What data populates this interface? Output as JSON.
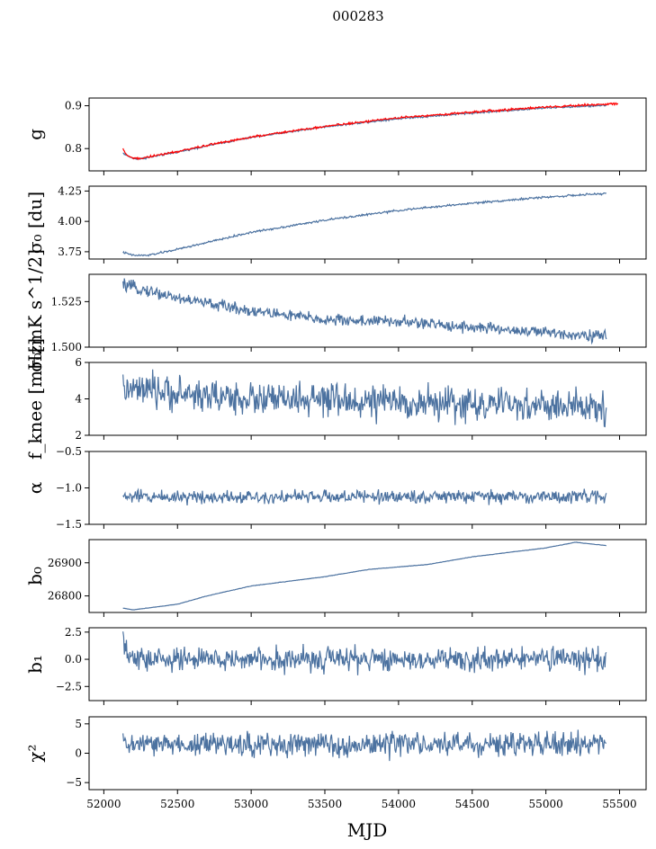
{
  "figure_title": "000283",
  "chart_data": {
    "type": "line",
    "xlabel": "MJD",
    "xlim": [
      51900,
      55680
    ],
    "xticks": [
      52000,
      52500,
      53000,
      53500,
      54000,
      54500,
      55000,
      55500
    ],
    "xtick_labels": [
      "52000",
      "52500",
      "53000",
      "53500",
      "54000",
      "54500",
      "55000",
      "55500"
    ],
    "x_start": 52130,
    "x_end": 55410,
    "line_color": "#4c72a0",
    "overlay_color": "#ff0000",
    "panels": [
      {
        "ylabel": "g",
        "ylim": [
          0.748,
          0.918
        ],
        "yticks": [
          0.8,
          0.9
        ],
        "ytick_labels": [
          "0.8",
          "0.9"
        ],
        "series": [
          {
            "color": "#4c72a0",
            "noise": 0.001,
            "x": [
              52130,
              52150,
              52200,
              52250,
              52300,
              52500,
              52750,
              53000,
              53500,
              54000,
              54500,
              55000,
              55410
            ],
            "y": [
              0.79,
              0.785,
              0.777,
              0.776,
              0.779,
              0.792,
              0.81,
              0.826,
              0.851,
              0.87,
              0.883,
              0.895,
              0.901
            ]
          },
          {
            "color": "#ff0000",
            "noise": 0.0012,
            "x": [
              52130,
              52150,
              52200,
              52250,
              52300,
              52500,
              52750,
              53000,
              53500,
              54000,
              54500,
              55000,
              55490
            ],
            "y": [
              0.8,
              0.786,
              0.778,
              0.777,
              0.78,
              0.793,
              0.811,
              0.827,
              0.852,
              0.872,
              0.885,
              0.897,
              0.905
            ]
          }
        ]
      },
      {
        "ylabel": "σ₀ [du]",
        "ylim": [
          3.69,
          4.29
        ],
        "yticks": [
          3.75,
          4.0,
          4.25
        ],
        "ytick_labels": [
          "3.75",
          "4.00",
          "4.25"
        ],
        "series": [
          {
            "color": "#4c72a0",
            "noise": 0.004,
            "x": [
              52130,
              52200,
              52300,
              52500,
              53000,
              53500,
              54000,
              54500,
              55000,
              55410
            ],
            "y": [
              3.745,
              3.72,
              3.72,
              3.77,
              3.91,
              4.01,
              4.09,
              4.15,
              4.2,
              4.23
            ]
          }
        ]
      },
      {
        "ylabel": "σ₀[mK s^1/2]",
        "ylim": [
          1.5,
          1.54
        ],
        "yticks": [
          1.5,
          1.525
        ],
        "ytick_labels": [
          "1.500",
          "1.525"
        ],
        "series": [
          {
            "color": "#4c72a0",
            "noise": 0.0016,
            "x": [
              52130,
              52300,
              52500,
              53000,
              53500,
              54000,
              54500,
              55000,
              55410
            ],
            "y": [
              1.534,
              1.531,
              1.527,
              1.52,
              1.515,
              1.514,
              1.511,
              1.508,
              1.506
            ]
          }
        ]
      },
      {
        "ylabel": "f_knee [mHz]",
        "ylim": [
          2,
          6
        ],
        "yticks": [
          2,
          4,
          6
        ],
        "ytick_labels": [
          "2",
          "4",
          "6"
        ],
        "series": [
          {
            "color": "#4c72a0",
            "noise": 0.45,
            "x": [
              52130,
              52500,
              53000,
              53500,
              54000,
              54500,
              55000,
              55410
            ],
            "y": [
              4.5,
              4.3,
              4.0,
              3.9,
              3.8,
              3.7,
              3.6,
              3.5
            ]
          }
        ]
      },
      {
        "ylabel": "α",
        "ylim": [
          -1.5,
          -0.5
        ],
        "yticks": [
          -1.5,
          -1.0,
          -0.5
        ],
        "ytick_labels": [
          "−1.5",
          "−1.0",
          "−0.5"
        ],
        "series": [
          {
            "color": "#4c72a0",
            "noise": 0.045,
            "x": [
              52130,
              55410
            ],
            "y": [
              -1.12,
              -1.12
            ]
          }
        ]
      },
      {
        "ylabel": "b₀",
        "ylim": [
          26750,
          26970
        ],
        "yticks": [
          26800,
          26900
        ],
        "ytick_labels": [
          "26800",
          "26900"
        ],
        "series": [
          {
            "color": "#4c72a0",
            "noise": 0.3,
            "x": [
              52130,
              52200,
              52500,
              52700,
              53000,
              53500,
              53800,
              54200,
              54500,
              55000,
              55200,
              55410
            ],
            "y": [
              26763,
              26758,
              26775,
              26800,
              26830,
              26858,
              26880,
              26895,
              26918,
              26945,
              26962,
              26952
            ]
          }
        ]
      },
      {
        "ylabel": "b₁",
        "ylim": [
          -3.8,
          2.9
        ],
        "yticks": [
          -2.5,
          0.0,
          2.5
        ],
        "ytick_labels": [
          "−2.5",
          "0.0",
          "2.5"
        ],
        "series": [
          {
            "color": "#4c72a0",
            "noise": 0.55,
            "x": [
              52130,
              52150,
              52200,
              55410
            ],
            "y": [
              1.8,
              0.5,
              0.0,
              0.0
            ]
          }
        ]
      },
      {
        "ylabel": "χ²",
        "ylim": [
          -6.2,
          6.2
        ],
        "yticks": [
          -5,
          0,
          5
        ],
        "ytick_labels": [
          "−5",
          "0",
          "5"
        ],
        "series": [
          {
            "color": "#4c72a0",
            "noise": 1.0,
            "x": [
              52130,
              55410
            ],
            "y": [
              1.5,
              1.5
            ]
          }
        ]
      }
    ]
  }
}
